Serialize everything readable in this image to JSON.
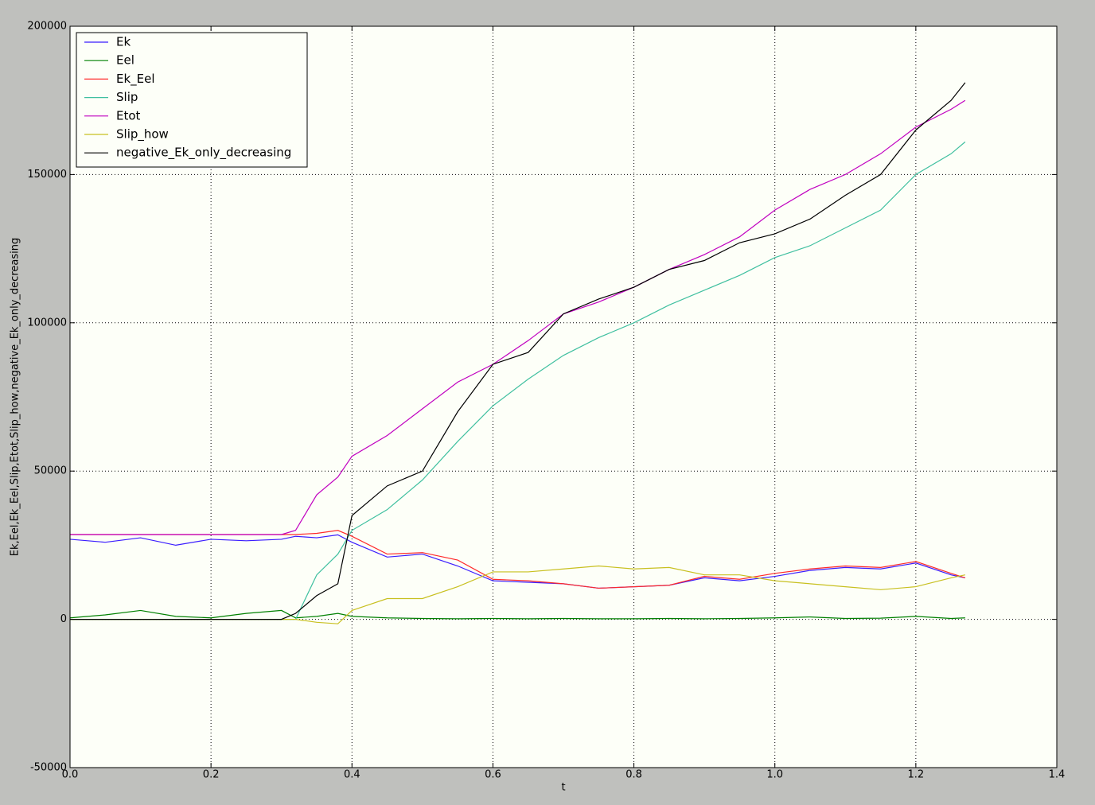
{
  "chart_data": {
    "type": "line",
    "xlabel": "t",
    "ylabel": "Ek,Eel,Ek_Eel,Slip,Etot,Slip_how,negative_Ek_only_decreasing",
    "x": [
      0,
      0.05,
      0.1,
      0.15,
      0.2,
      0.25,
      0.3,
      0.32,
      0.35,
      0.38,
      0.4,
      0.45,
      0.5,
      0.55,
      0.6,
      0.65,
      0.7,
      0.75,
      0.8,
      0.85,
      0.9,
      0.95,
      1.0,
      1.05,
      1.1,
      1.15,
      1.2,
      1.25,
      1.27
    ],
    "series": [
      {
        "name": "Ek",
        "color": "#3a1cff",
        "values": [
          27000,
          26000,
          27500,
          25000,
          27000,
          26500,
          27000,
          28000,
          27500,
          28500,
          26000,
          21000,
          22000,
          18000,
          13000,
          12500,
          12000,
          10500,
          11000,
          11500,
          14000,
          13000,
          14500,
          16500,
          17500,
          17000,
          19000,
          15000,
          14000
        ]
      },
      {
        "name": "Eel",
        "color": "#008000",
        "values": [
          500,
          1500,
          3000,
          1000,
          500,
          2000,
          3000,
          500,
          1000,
          2000,
          1000,
          500,
          300,
          200,
          300,
          200,
          300,
          200,
          200,
          300,
          200,
          300,
          500,
          800,
          300,
          400,
          1000,
          300,
          500
        ]
      },
      {
        "name": "Ek_Eel",
        "color": "#ff2a2a",
        "values": [
          28600,
          28600,
          28600,
          28600,
          28600,
          28600,
          28600,
          28600,
          29000,
          30000,
          28000,
          22000,
          22500,
          20000,
          13500,
          13000,
          12000,
          10500,
          11000,
          11500,
          14500,
          13500,
          15500,
          17000,
          18000,
          17500,
          19500,
          15500,
          14000
        ]
      },
      {
        "name": "Slip",
        "color": "#40c0a0",
        "values": [
          0,
          0,
          0,
          0,
          0,
          0,
          0,
          0,
          15000,
          22000,
          30000,
          37000,
          47000,
          60000,
          72000,
          81000,
          89000,
          95000,
          100000,
          106000,
          111000,
          116000,
          122000,
          126000,
          132000,
          138000,
          150000,
          157000,
          161000
        ]
      },
      {
        "name": "Etot",
        "color": "#c000c0",
        "values": [
          28600,
          28600,
          28600,
          28600,
          28600,
          28600,
          28600,
          30000,
          42000,
          48000,
          55000,
          62000,
          71000,
          80000,
          86000,
          94000,
          103000,
          107000,
          112000,
          118000,
          123000,
          129000,
          138000,
          145000,
          150000,
          157000,
          166000,
          172000,
          175000
        ]
      },
      {
        "name": "Slip_how",
        "color": "#c8c020",
        "values": [
          0,
          0,
          0,
          0,
          0,
          0,
          0,
          0,
          -1000,
          -1500,
          3000,
          7000,
          7000,
          11000,
          16000,
          16000,
          17000,
          18000,
          17000,
          17500,
          15000,
          15000,
          13000,
          12000,
          11000,
          10000,
          11000,
          14000,
          15000
        ]
      },
      {
        "name": "negative_Ek_only_decreasing",
        "color": "#000000",
        "values": [
          0,
          0,
          0,
          0,
          0,
          0,
          0,
          2000,
          8000,
          12000,
          35000,
          45000,
          50000,
          70000,
          86000,
          90000,
          103000,
          108000,
          112000,
          118000,
          121000,
          127000,
          130000,
          135000,
          143000,
          150000,
          165000,
          175000,
          181000
        ]
      }
    ],
    "xlim": [
      0,
      1.4
    ],
    "xticks": [
      {
        "value": 0,
        "label": "0.0"
      },
      0.2,
      0.4,
      0.6,
      0.8,
      {
        "value": 1,
        "label": "1.0"
      },
      1.2,
      1.4
    ],
    "ylim": [
      -50000,
      200000
    ],
    "yticks": [
      -50000,
      0,
      50000,
      100000,
      150000,
      200000
    ],
    "grid": true,
    "legend": "upper-left"
  }
}
